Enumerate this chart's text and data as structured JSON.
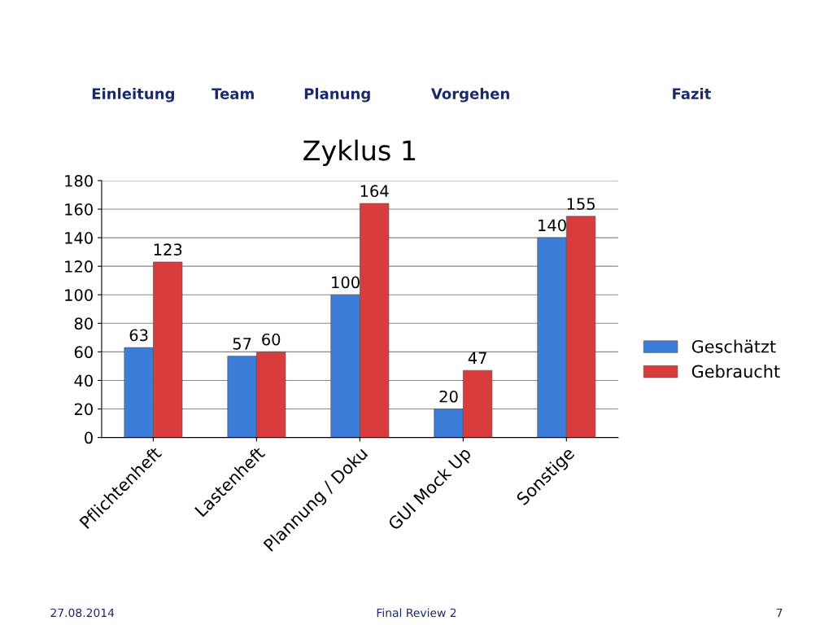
{
  "chart_data": {
    "type": "bar",
    "title": "Zyklus 1",
    "categories": [
      "Pflichtenheft",
      "Lastenheft",
      "Plannung / Doku",
      "GUI Mock Up",
      "Sonstige"
    ],
    "series": [
      {
        "name": "Geschätzt",
        "color": "#3b7dd8",
        "values": [
          63,
          57,
          100,
          20,
          140
        ]
      },
      {
        "name": "Gebraucht",
        "color": "#d83c3c",
        "values": [
          123,
          60,
          164,
          47,
          155
        ]
      }
    ],
    "ylim": [
      0,
      180
    ],
    "yticks": [
      0,
      20,
      40,
      60,
      80,
      100,
      120,
      140,
      160,
      180
    ],
    "grid": "y",
    "legend": "right",
    "data_labels": true,
    "annotations": [
      "Einleitung",
      "Team",
      "Planung",
      "Vorgehen",
      "Fazit",
      "27.08.2014",
      "Final Review 2",
      "7"
    ]
  }
}
